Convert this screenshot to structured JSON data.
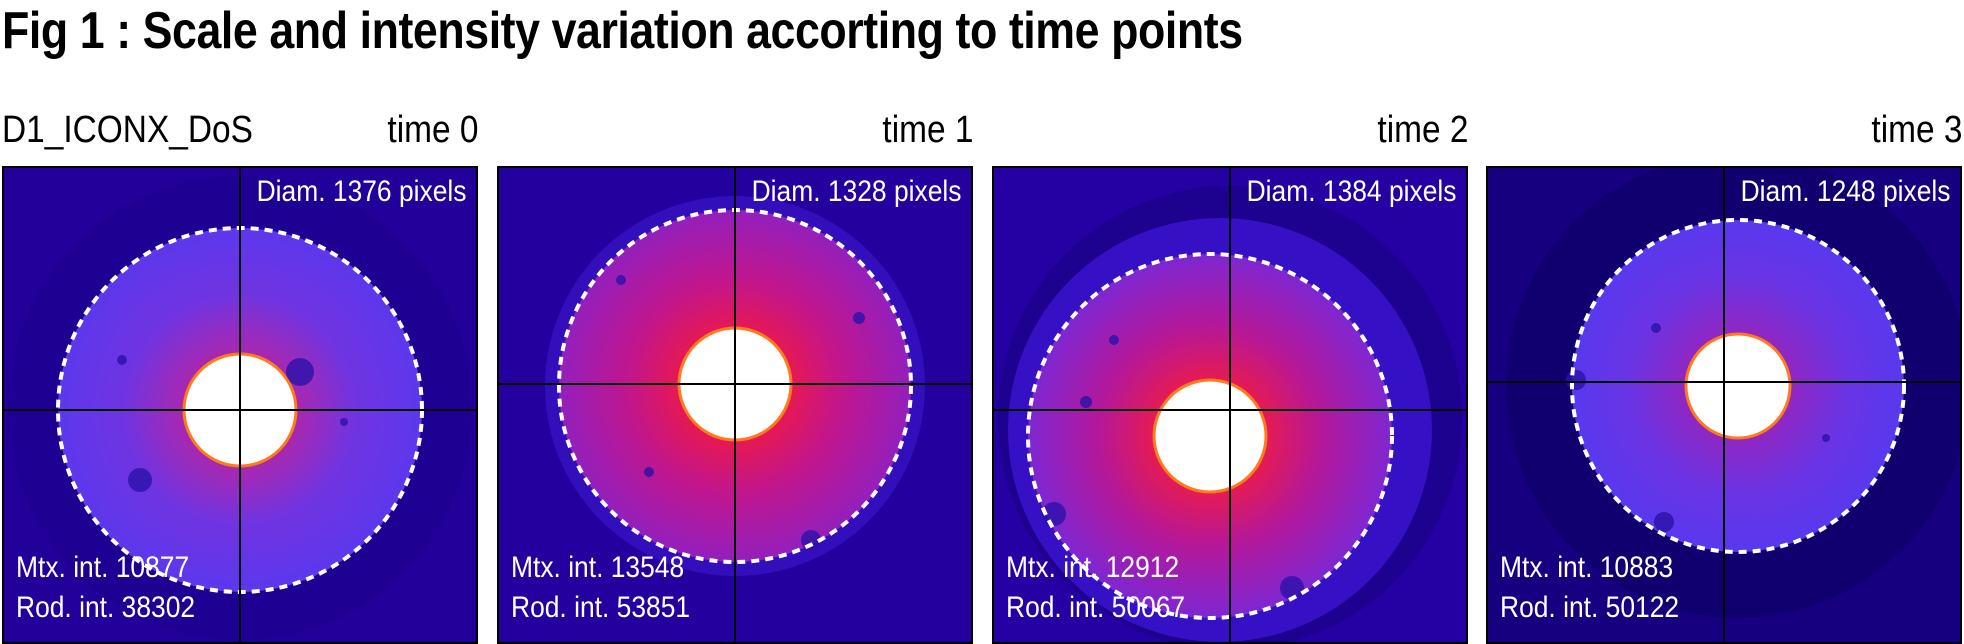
{
  "title": "Fig 1 : Scale and intensity variation accorting to time points",
  "sample_id": "D1_ICONX_DoS",
  "panels": [
    {
      "time": "time 0",
      "diameter": "Diam. 1376 pixels",
      "matrix_intensity": "Mtx. int. 10877",
      "rod_intensity": "Rod. int. 38302"
    },
    {
      "time": "time 1",
      "diameter": "Diam. 1328 pixels",
      "matrix_intensity": "Mtx. int. 13548",
      "rod_intensity": "Rod. int. 53851"
    },
    {
      "time": "time 2",
      "diameter": "Diam. 1384 pixels",
      "matrix_intensity": "Mtx. int. 12912",
      "rod_intensity": "Rod. int. 50067"
    },
    {
      "time": "time 3",
      "diameter": "Diam. 1248 pixels",
      "matrix_intensity": "Mtx. int. 10883",
      "rod_intensity": "Rod. int. 50122"
    }
  ],
  "colors": {
    "background_dark": "#22009a",
    "matrix_purple": "#5e36ee",
    "hot_red": "#e8104a",
    "rod_white": "#ffffff",
    "crosshair": "#000000",
    "outline_dashed": "#ffffff"
  }
}
